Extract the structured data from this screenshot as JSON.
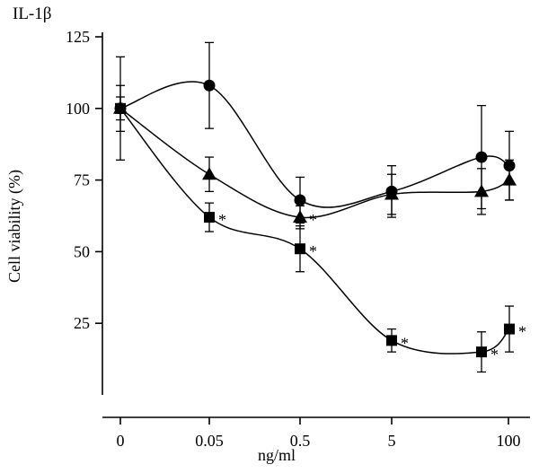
{
  "chart_data": {
    "type": "line",
    "title": "IL-1β",
    "xlabel": "ng/ml",
    "ylabel": "Cell viability (%)",
    "categories": [
      "0",
      "0.05",
      "0.5",
      "5",
      "100"
    ],
    "x_ticks": [
      "0",
      "0.05",
      "0.5",
      "5",
      "100"
    ],
    "y_ticks": [
      "25",
      "50",
      "75",
      "100",
      "125"
    ],
    "ylim": [
      0,
      125
    ],
    "grid": false,
    "legend": "none",
    "significance_marker": "*",
    "series": [
      {
        "marker": "circle",
        "points": [
          {
            "x": "0",
            "y": 100,
            "err": 8
          },
          {
            "x": "0.05",
            "y": 108,
            "err": 15
          },
          {
            "x": "0.5",
            "y": 68,
            "err": 8
          },
          {
            "x": "5",
            "y": 71,
            "err": 9
          },
          {
            "x": "~50",
            "y": 83,
            "err": 18
          },
          {
            "x": "100",
            "y": 80,
            "err": 12
          }
        ]
      },
      {
        "marker": "triangle",
        "points": [
          {
            "x": "0",
            "y": 100,
            "err": 18
          },
          {
            "x": "0.05",
            "y": 77,
            "err": 6
          },
          {
            "x": "0.5",
            "y": 62,
            "err": 4,
            "sig": true
          },
          {
            "x": "5",
            "y": 70,
            "err": 7
          },
          {
            "x": "~50",
            "y": 71,
            "err": 8
          },
          {
            "x": "100",
            "y": 75,
            "err": 7
          }
        ]
      },
      {
        "marker": "square",
        "points": [
          {
            "x": "0",
            "y": 100,
            "err": 4
          },
          {
            "x": "0.05",
            "y": 62,
            "err": 5,
            "sig": true
          },
          {
            "x": "0.5",
            "y": 51,
            "err": 8,
            "sig": true
          },
          {
            "x": "5",
            "y": 19,
            "err": 4,
            "sig": true
          },
          {
            "x": "~50",
            "y": 15,
            "err": 7,
            "sig": true
          },
          {
            "x": "100",
            "y": 23,
            "err": 8,
            "sig": true
          }
        ]
      }
    ]
  }
}
